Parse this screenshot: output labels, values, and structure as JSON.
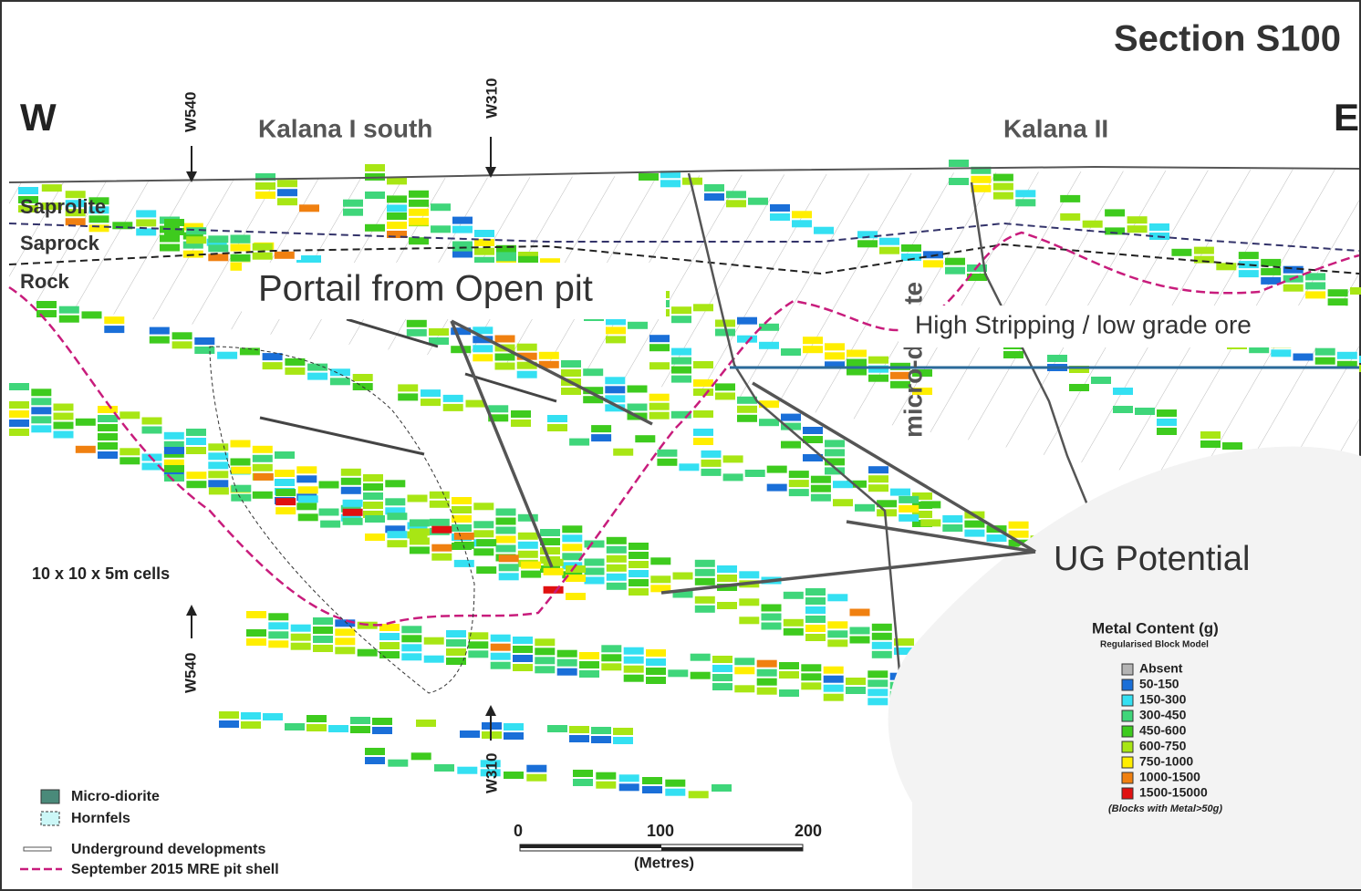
{
  "header": {
    "title": "Section S100"
  },
  "directions": {
    "west": "W",
    "east": "E"
  },
  "zones": [
    "Kalana I south",
    "Kalana II"
  ],
  "drill_lines": {
    "top": [
      "W540",
      "W310"
    ],
    "bottom": [
      "W540",
      "W310"
    ]
  },
  "layers": [
    "Saprolite",
    "Saprock",
    "Rock"
  ],
  "annotations": {
    "portal": "Portail from Open pit",
    "stripping": "High Stripping / low grade ore",
    "ug": "UG Potential",
    "cells": "10 x 10 x 5m cells",
    "rock_type": "micro-diorite"
  },
  "metal_legend": {
    "title": "Metal Content (g)",
    "subtitle": "Regularised Block Model",
    "items": [
      {
        "label": "Absent",
        "color": "#b4b4b4"
      },
      {
        "label": "50-150",
        "color": "#1a6fd8"
      },
      {
        "label": "150-300",
        "color": "#34e0f2"
      },
      {
        "label": "300-450",
        "color": "#3fd67a"
      },
      {
        "label": "450-600",
        "color": "#3ecb1e"
      },
      {
        "label": "600-750",
        "color": "#a8e614"
      },
      {
        "label": "750-1000",
        "color": "#ffee00"
      },
      {
        "label": "1000-1500",
        "color": "#f08010"
      },
      {
        "label": "1500-15000",
        "color": "#e01010"
      }
    ],
    "note": "(Blocks with Metal>50g)"
  },
  "geology_legend": [
    {
      "label": "Micro-diorite"
    },
    {
      "label": "Hornfels"
    },
    {
      "label": "Underground developments"
    },
    {
      "label": "September 2015 MRE pit shell"
    }
  ],
  "scale": {
    "ticks": [
      "0",
      "100",
      "200"
    ],
    "unit": "(Metres)"
  }
}
